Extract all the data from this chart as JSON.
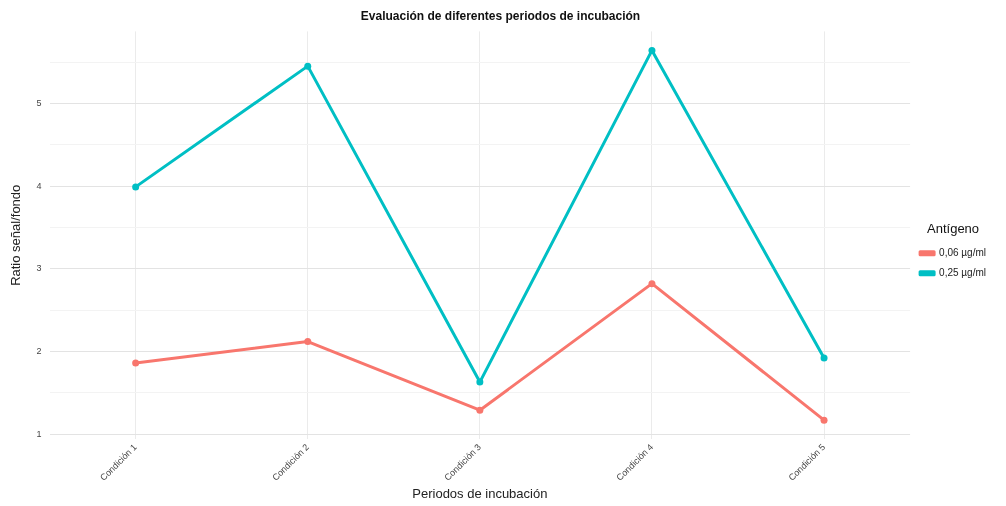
{
  "chart_data": {
    "type": "line",
    "title": "Evaluación de diferentes periodos de incubación",
    "xlabel": "Periodos de incubación",
    "ylabel": "Ratio señal/fondo",
    "legend_title": "Antígeno",
    "categories": [
      "Condición 1",
      "Condición 2",
      "Condición 3",
      "Condición 4",
      "Condición 5"
    ],
    "series": [
      {
        "name": "0,06 µg/ml",
        "color": "#f8766d",
        "values": [
          1.86,
          2.12,
          1.29,
          2.82,
          1.17
        ]
      },
      {
        "name": "0,25 µg/ml",
        "color": "#00bfc4",
        "values": [
          3.99,
          5.45,
          1.63,
          5.64,
          1.92
        ]
      }
    ],
    "ylim": [
      0.94,
      5.87
    ],
    "yticks": [
      1,
      {
        "value": 1.5,
        "label": null
      },
      2,
      {
        "value": 2.5,
        "label": null
      },
      3,
      {
        "value": 3.5,
        "label": null
      },
      4,
      {
        "value": 4.5,
        "label": null
      },
      5,
      {
        "value": 5.5,
        "label": null
      }
    ],
    "grid": true,
    "legend": "right",
    "marker": "circle",
    "line_style": "solid"
  }
}
